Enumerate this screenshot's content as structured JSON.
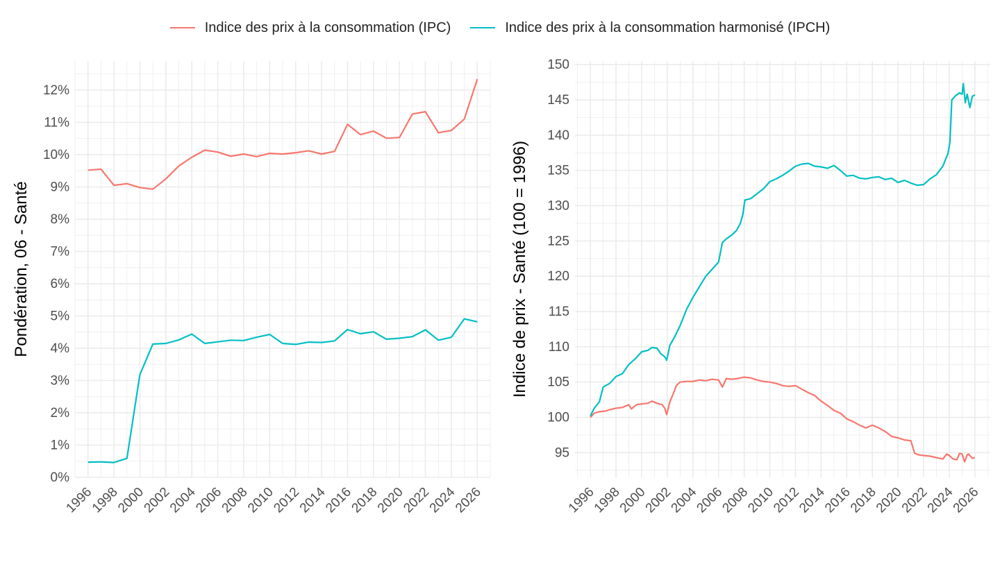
{
  "legend": {
    "ipc_label": "Indice des prix à la consommation (IPC)",
    "ipch_label": "Indice des prix à la consommation harmonisé (IPCH)"
  },
  "colors": {
    "ipc": "#F8766D",
    "ipch": "#00BFC4",
    "grid": "#EBEBEB",
    "text": "#4D4D4D"
  },
  "chart_data": [
    {
      "type": "line",
      "ylabel": "Pondération, 06 - Santé",
      "xlabel": "",
      "xlim": [
        1995,
        2027
      ],
      "ylim": [
        0,
        12.9
      ],
      "x_ticks": [
        1996,
        1998,
        2000,
        2002,
        2004,
        2006,
        2008,
        2010,
        2012,
        2014,
        2016,
        2018,
        2020,
        2022,
        2024,
        2026
      ],
      "y_ticks": [
        0,
        1,
        2,
        3,
        4,
        5,
        6,
        7,
        8,
        9,
        10,
        11,
        12
      ],
      "y_tick_labels": [
        "0%",
        "1%",
        "2%",
        "3%",
        "4%",
        "5%",
        "6%",
        "7%",
        "8%",
        "9%",
        "10%",
        "11%",
        "12%"
      ],
      "x": [
        1996,
        1997,
        1998,
        1999,
        2000,
        2001,
        2002,
        2003,
        2004,
        2005,
        2006,
        2007,
        2008,
        2009,
        2010,
        2011,
        2012,
        2013,
        2014,
        2015,
        2016,
        2017,
        2018,
        2019,
        2020,
        2021,
        2022,
        2023,
        2024,
        2025,
        2026
      ],
      "series": [
        {
          "name": "IPC",
          "color_key": "ipc",
          "values": [
            9.52,
            9.55,
            9.05,
            9.1,
            8.98,
            8.93,
            9.25,
            9.65,
            9.92,
            10.14,
            10.08,
            9.95,
            10.02,
            9.94,
            10.04,
            10.02,
            10.06,
            10.12,
            10.02,
            10.1,
            10.94,
            10.62,
            10.73,
            10.51,
            10.53,
            11.26,
            11.33,
            10.68,
            10.75,
            11.1,
            12.34
          ]
        },
        {
          "name": "IPCH",
          "color_key": "ipch",
          "values": [
            0.47,
            0.48,
            0.46,
            0.59,
            3.18,
            4.13,
            4.15,
            4.26,
            4.44,
            4.15,
            4.2,
            4.25,
            4.24,
            4.34,
            4.43,
            4.15,
            4.12,
            4.19,
            4.18,
            4.23,
            4.58,
            4.45,
            4.51,
            4.28,
            4.31,
            4.36,
            4.57,
            4.25,
            4.34,
            4.91,
            4.82
          ]
        }
      ]
    },
    {
      "type": "line",
      "ylabel": "Indice de prix - Santé (100 = 1996)",
      "xlabel": "",
      "xlim": [
        1994.8,
        2027.2
      ],
      "ylim": [
        91.5,
        150.5
      ],
      "x_ticks": [
        1996,
        1998,
        2000,
        2002,
        2004,
        2006,
        2008,
        2010,
        2012,
        2014,
        2016,
        2018,
        2020,
        2022,
        2024,
        2026
      ],
      "y_ticks": [
        95,
        100,
        105,
        110,
        115,
        120,
        125,
        130,
        135,
        140,
        145,
        150
      ],
      "series": [
        {
          "name": "IPC",
          "color_key": "ipc",
          "points": [
            [
              1996.0,
              100.0
            ],
            [
              1996.3,
              100.6
            ],
            [
              1996.7,
              100.8
            ],
            [
              1997.2,
              100.9
            ],
            [
              1997.5,
              101.1
            ],
            [
              1998.0,
              101.3
            ],
            [
              1998.5,
              101.4
            ],
            [
              1999.0,
              101.8
            ],
            [
              1999.2,
              101.2
            ],
            [
              1999.6,
              101.8
            ],
            [
              2000.0,
              101.9
            ],
            [
              2000.5,
              102.0
            ],
            [
              2000.8,
              102.3
            ],
            [
              2001.2,
              102.0
            ],
            [
              2001.6,
              101.8
            ],
            [
              2001.8,
              101.3
            ],
            [
              2001.95,
              100.4
            ],
            [
              2002.2,
              102.2
            ],
            [
              2002.5,
              103.5
            ],
            [
              2002.7,
              104.5
            ],
            [
              2003.0,
              105.0
            ],
            [
              2003.5,
              105.1
            ],
            [
              2004.0,
              105.1
            ],
            [
              2004.5,
              105.3
            ],
            [
              2005.0,
              105.2
            ],
            [
              2005.5,
              105.4
            ],
            [
              2006.0,
              105.3
            ],
            [
              2006.3,
              104.3
            ],
            [
              2006.6,
              105.5
            ],
            [
              2007.0,
              105.4
            ],
            [
              2007.5,
              105.5
            ],
            [
              2008.0,
              105.7
            ],
            [
              2008.5,
              105.6
            ],
            [
              2009.0,
              105.3
            ],
            [
              2009.5,
              105.1
            ],
            [
              2010.0,
              105.0
            ],
            [
              2010.5,
              104.8
            ],
            [
              2011.0,
              104.5
            ],
            [
              2011.5,
              104.4
            ],
            [
              2012.0,
              104.5
            ],
            [
              2012.5,
              104.0
            ],
            [
              2013.0,
              103.5
            ],
            [
              2013.5,
              103.1
            ],
            [
              2014.0,
              102.3
            ],
            [
              2014.5,
              101.7
            ],
            [
              2015.0,
              101.0
            ],
            [
              2015.5,
              100.6
            ],
            [
              2016.0,
              99.8
            ],
            [
              2016.5,
              99.4
            ],
            [
              2017.0,
              98.9
            ],
            [
              2017.5,
              98.5
            ],
            [
              2018.0,
              98.9
            ],
            [
              2018.5,
              98.5
            ],
            [
              2019.0,
              98.0
            ],
            [
              2019.5,
              97.3
            ],
            [
              2020.0,
              97.1
            ],
            [
              2020.5,
              96.8
            ],
            [
              2021.0,
              96.7
            ],
            [
              2021.3,
              94.9
            ],
            [
              2021.6,
              94.7
            ],
            [
              2022.0,
              94.6
            ],
            [
              2022.5,
              94.5
            ],
            [
              2023.0,
              94.3
            ],
            [
              2023.5,
              94.1
            ],
            [
              2023.8,
              94.8
            ],
            [
              2024.0,
              94.6
            ],
            [
              2024.3,
              94.1
            ],
            [
              2024.6,
              94.0
            ],
            [
              2024.8,
              94.9
            ],
            [
              2025.0,
              94.8
            ],
            [
              2025.2,
              93.7
            ],
            [
              2025.4,
              94.7
            ],
            [
              2025.5,
              94.8
            ],
            [
              2025.6,
              94.6
            ],
            [
              2025.8,
              94.2
            ],
            [
              2026.0,
              94.3
            ]
          ]
        },
        {
          "name": "IPCH",
          "color_key": "ipch",
          "points": [
            [
              1996.0,
              100.2
            ],
            [
              1996.3,
              101.3
            ],
            [
              1996.7,
              102.2
            ],
            [
              1997.0,
              104.3
            ],
            [
              1997.5,
              104.8
            ],
            [
              1998.0,
              105.8
            ],
            [
              1998.5,
              106.2
            ],
            [
              1999.0,
              107.5
            ],
            [
              1999.5,
              108.3
            ],
            [
              2000.0,
              109.3
            ],
            [
              2000.5,
              109.5
            ],
            [
              2000.8,
              109.9
            ],
            [
              2001.2,
              109.8
            ],
            [
              2001.5,
              109.0
            ],
            [
              2001.8,
              108.6
            ],
            [
              2001.95,
              108.1
            ],
            [
              2002.2,
              110.2
            ],
            [
              2002.6,
              111.5
            ],
            [
              2003.0,
              113.0
            ],
            [
              2003.5,
              115.3
            ],
            [
              2004.0,
              117.0
            ],
            [
              2004.5,
              118.5
            ],
            [
              2005.0,
              120.0
            ],
            [
              2005.5,
              121.0
            ],
            [
              2006.0,
              122.0
            ],
            [
              2006.3,
              124.8
            ],
            [
              2006.6,
              125.3
            ],
            [
              2007.0,
              125.8
            ],
            [
              2007.4,
              126.5
            ],
            [
              2007.7,
              127.5
            ],
            [
              2007.9,
              128.8
            ],
            [
              2008.05,
              130.8
            ],
            [
              2008.5,
              131.0
            ],
            [
              2009.0,
              131.7
            ],
            [
              2009.5,
              132.4
            ],
            [
              2010.0,
              133.4
            ],
            [
              2010.5,
              133.8
            ],
            [
              2011.0,
              134.3
            ],
            [
              2011.5,
              134.9
            ],
            [
              2012.0,
              135.6
            ],
            [
              2012.5,
              135.9
            ],
            [
              2013.0,
              136.0
            ],
            [
              2013.5,
              135.6
            ],
            [
              2014.0,
              135.5
            ],
            [
              2014.5,
              135.3
            ],
            [
              2015.0,
              135.7
            ],
            [
              2015.5,
              135.0
            ],
            [
              2016.0,
              134.2
            ],
            [
              2016.5,
              134.3
            ],
            [
              2017.0,
              133.9
            ],
            [
              2017.5,
              133.8
            ],
            [
              2018.0,
              134.0
            ],
            [
              2018.5,
              134.1
            ],
            [
              2019.0,
              133.7
            ],
            [
              2019.5,
              133.9
            ],
            [
              2020.0,
              133.3
            ],
            [
              2020.5,
              133.6
            ],
            [
              2021.0,
              133.2
            ],
            [
              2021.5,
              132.9
            ],
            [
              2022.0,
              133.0
            ],
            [
              2022.5,
              133.8
            ],
            [
              2023.0,
              134.4
            ],
            [
              2023.5,
              135.6
            ],
            [
              2023.9,
              137.4
            ],
            [
              2024.05,
              139.0
            ],
            [
              2024.2,
              145.0
            ],
            [
              2024.5,
              145.6
            ],
            [
              2024.8,
              146.0
            ],
            [
              2025.0,
              145.8
            ],
            [
              2025.1,
              147.3
            ],
            [
              2025.25,
              144.6
            ],
            [
              2025.4,
              145.8
            ],
            [
              2025.6,
              143.9
            ],
            [
              2025.8,
              145.5
            ],
            [
              2026.0,
              145.7
            ]
          ]
        }
      ]
    }
  ]
}
